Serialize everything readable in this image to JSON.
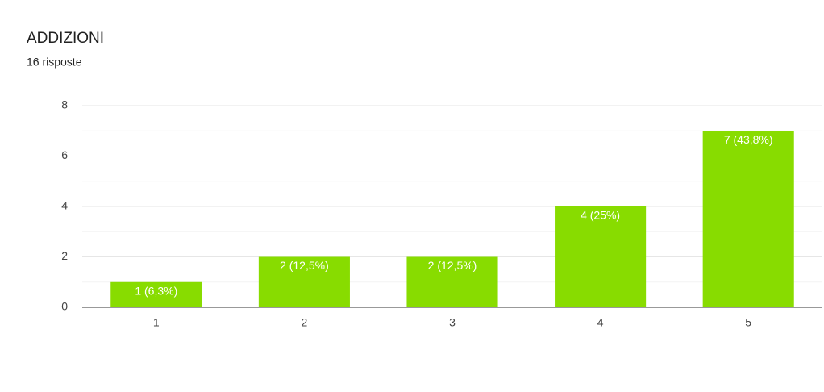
{
  "chart_data": {
    "type": "bar",
    "title": "ADDIZIONI",
    "subtitle": "16 risposte",
    "categories": [
      "1",
      "2",
      "3",
      "4",
      "5"
    ],
    "values": [
      1,
      2,
      2,
      4,
      7
    ],
    "value_labels": [
      "1 (6,3%)",
      "2 (12,5%)",
      "2 (12,5%)",
      "4 (25%)",
      "7 (43,8%)"
    ],
    "color": "#88dc00",
    "ylim": [
      0,
      8
    ],
    "yticks": [
      0,
      2,
      4,
      6,
      8
    ],
    "grid": true,
    "minor_grid": true
  }
}
